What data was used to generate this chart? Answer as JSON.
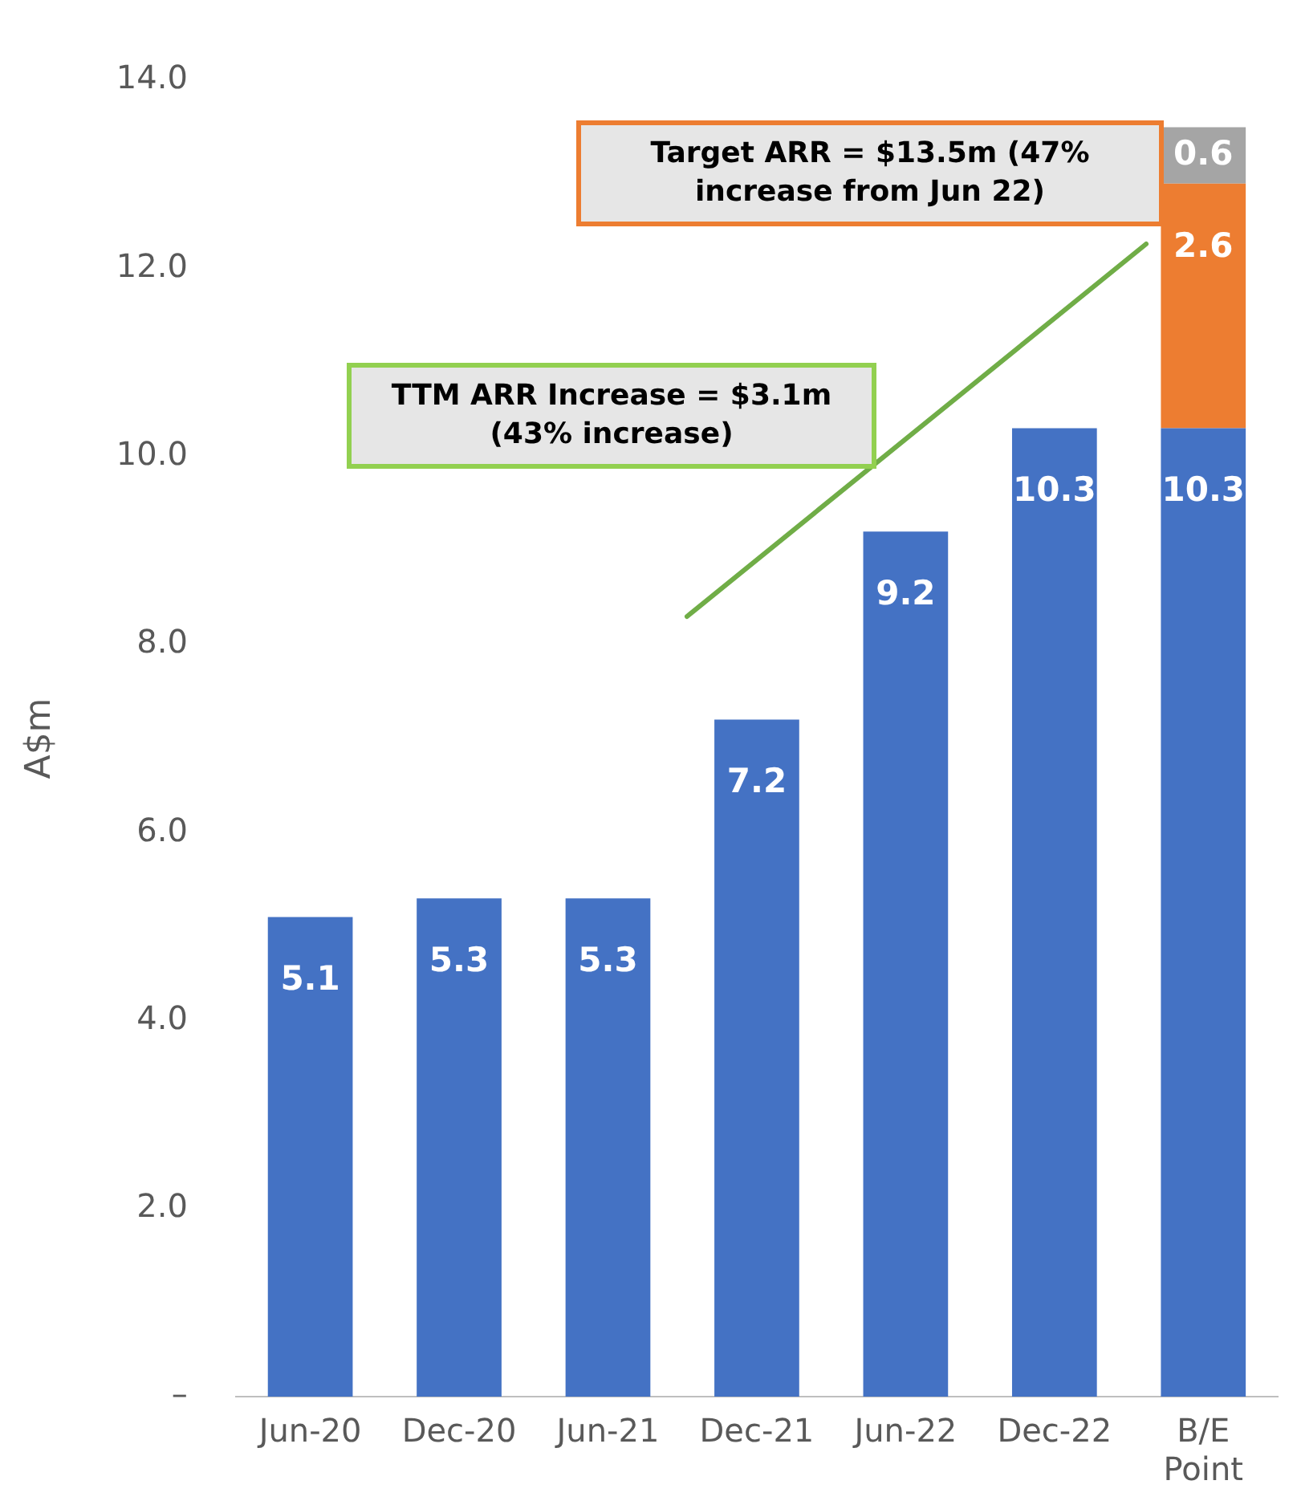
{
  "chart_data": {
    "type": "bar",
    "stacked": true,
    "ylabel": "A$m",
    "categories": [
      "Jun-20",
      "Dec-20",
      "Jun-21",
      "Dec-21",
      "Jun-22",
      "Dec-22",
      "B/E Point"
    ],
    "series": [
      {
        "color": "#4472c4",
        "values": [
          5.1,
          5.3,
          5.3,
          7.2,
          9.2,
          10.3,
          10.3
        ]
      },
      {
        "color": "#ed7d31",
        "values": [
          null,
          null,
          null,
          null,
          null,
          null,
          2.6
        ]
      },
      {
        "color": "#a5a5a5",
        "values": [
          null,
          null,
          null,
          null,
          null,
          null,
          0.6
        ]
      }
    ],
    "ylim": [
      0,
      14
    ],
    "yticks": [
      {
        "value": 0,
        "label": "–"
      },
      {
        "value": 2,
        "label": "2.0"
      },
      {
        "value": 4,
        "label": "4.0"
      },
      {
        "value": 6,
        "label": "6.0"
      },
      {
        "value": 8,
        "label": "8.0"
      },
      {
        "value": 10,
        "label": "10.0"
      },
      {
        "value": 12,
        "label": "12.0"
      },
      {
        "value": 14,
        "label": "14.0"
      }
    ],
    "grid": false,
    "legend": false,
    "data_labels": true,
    "annotations": [
      "TTM ARR Increase = $3.1m (43% increase)",
      "Target ARR = $13.5m (47% increase from Jun 22)"
    ]
  }
}
